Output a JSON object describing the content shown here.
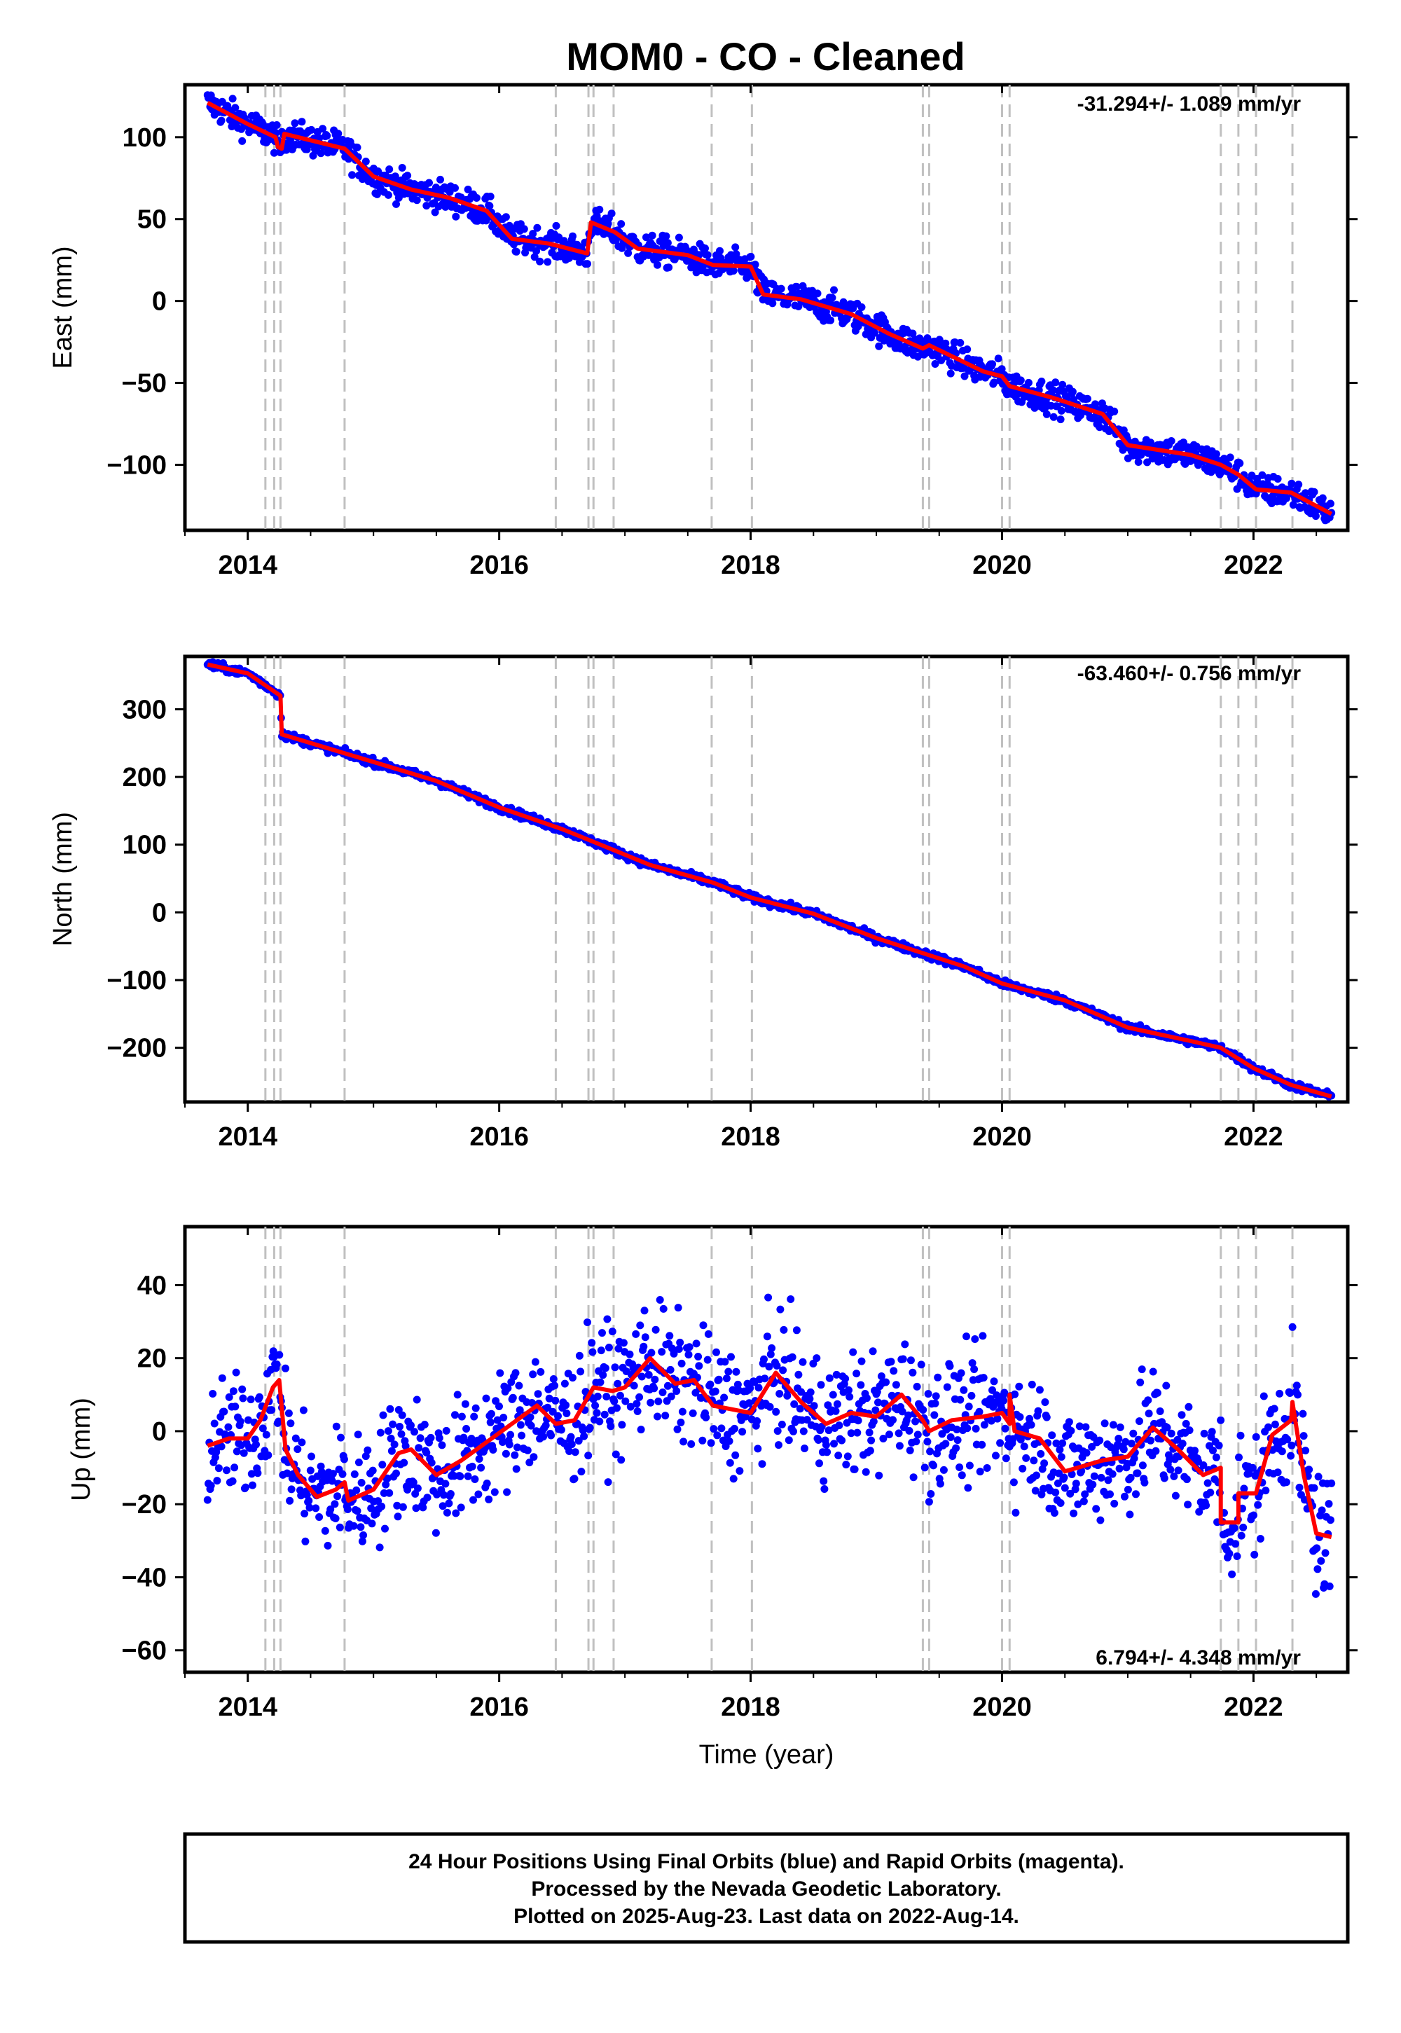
{
  "title": "MOM0  - CO - Cleaned",
  "colors": {
    "points": "#0000ff",
    "model": "#ff0000",
    "breaks": "#c0c0c0",
    "frame": "#000000"
  },
  "chart_data": [
    {
      "type": "scatter",
      "ylabel": "East (mm)",
      "xlabel": "",
      "rate": "-31.294+/- 1.089 mm/yr",
      "xlim": [
        2013.5,
        2022.75
      ],
      "ylim": [
        -140,
        132
      ],
      "xticks": [
        2014,
        2016,
        2018,
        2020,
        2022
      ],
      "yticks": [
        -100,
        -50,
        0,
        50,
        100
      ],
      "breaks": [
        2014.14,
        2014.21,
        2014.26,
        2014.77,
        2016.45,
        2016.71,
        2016.75,
        2016.91,
        2017.69,
        2018.01,
        2019.37,
        2019.42,
        2020.0,
        2020.06,
        2021.74,
        2021.88,
        2022.02,
        2022.31
      ],
      "model": [
        [
          2013.68,
          121
        ],
        [
          2014.0,
          108
        ],
        [
          2014.22,
          100
        ],
        [
          2014.24,
          94
        ],
        [
          2014.27,
          93
        ],
        [
          2014.29,
          102
        ],
        [
          2014.77,
          93
        ],
        [
          2015.0,
          76
        ],
        [
          2015.3,
          68
        ],
        [
          2015.6,
          63
        ],
        [
          2015.9,
          55
        ],
        [
          2016.1,
          38
        ],
        [
          2016.4,
          35
        ],
        [
          2016.7,
          29
        ],
        [
          2016.73,
          48
        ],
        [
          2016.92,
          42
        ],
        [
          2017.1,
          32
        ],
        [
          2017.5,
          28
        ],
        [
          2017.7,
          22
        ],
        [
          2018.0,
          21
        ],
        [
          2018.1,
          4
        ],
        [
          2018.4,
          1
        ],
        [
          2018.8,
          -8
        ],
        [
          2019.1,
          -20
        ],
        [
          2019.37,
          -29
        ],
        [
          2019.42,
          -27
        ],
        [
          2019.85,
          -43
        ],
        [
          2020.0,
          -46
        ],
        [
          2020.06,
          -52
        ],
        [
          2020.4,
          -59
        ],
        [
          2020.8,
          -69
        ],
        [
          2021.0,
          -88
        ],
        [
          2021.5,
          -94
        ],
        [
          2021.74,
          -100
        ],
        [
          2021.88,
          -106
        ],
        [
          2022.02,
          -115
        ],
        [
          2022.3,
          -117
        ],
        [
          2022.62,
          -130
        ]
      ]
    },
    {
      "type": "scatter",
      "ylabel": "North (mm)",
      "xlabel": "",
      "rate": "-63.460+/- 0.756 mm/yr",
      "xlim": [
        2013.5,
        2022.75
      ],
      "ylim": [
        -280,
        378
      ],
      "xticks": [
        2014,
        2016,
        2018,
        2020,
        2022
      ],
      "yticks": [
        -200,
        -100,
        0,
        100,
        200,
        300
      ],
      "breaks": [
        2014.14,
        2014.21,
        2014.26,
        2014.77,
        2016.45,
        2016.71,
        2016.75,
        2016.91,
        2017.69,
        2018.01,
        2019.37,
        2019.42,
        2020.0,
        2020.06,
        2021.74,
        2021.88,
        2022.02,
        2022.31
      ],
      "model": [
        [
          2013.68,
          366
        ],
        [
          2014.0,
          353
        ],
        [
          2014.26,
          320
        ],
        [
          2014.27,
          263
        ],
        [
          2014.77,
          235
        ],
        [
          2015.5,
          194
        ],
        [
          2016.0,
          155
        ],
        [
          2016.5,
          123
        ],
        [
          2016.7,
          108
        ],
        [
          2017.2,
          70
        ],
        [
          2017.7,
          44
        ],
        [
          2018.0,
          22
        ],
        [
          2018.5,
          -2
        ],
        [
          2019.0,
          -38
        ],
        [
          2019.4,
          -62
        ],
        [
          2019.7,
          -80
        ],
        [
          2020.0,
          -105
        ],
        [
          2020.5,
          -130
        ],
        [
          2021.0,
          -170
        ],
        [
          2021.5,
          -190
        ],
        [
          2021.74,
          -200
        ],
        [
          2022.0,
          -230
        ],
        [
          2022.3,
          -255
        ],
        [
          2022.62,
          -272
        ]
      ]
    },
    {
      "type": "scatter",
      "ylabel": "Up (mm)",
      "xlabel": "Time (year)",
      "rate": "6.794+/- 4.348 mm/yr",
      "xlim": [
        2013.5,
        2022.75
      ],
      "ylim": [
        -66,
        56
      ],
      "xticks": [
        2014,
        2016,
        2018,
        2020,
        2022
      ],
      "yticks": [
        -60,
        -40,
        -20,
        0,
        20,
        40
      ],
      "breaks": [
        2014.14,
        2014.21,
        2014.26,
        2014.77,
        2016.45,
        2016.71,
        2016.75,
        2016.91,
        2017.69,
        2018.01,
        2019.37,
        2019.42,
        2020.0,
        2020.06,
        2021.74,
        2021.88,
        2022.02,
        2022.31
      ],
      "model": [
        [
          2013.68,
          -4
        ],
        [
          2013.85,
          -2
        ],
        [
          2014.0,
          -2
        ],
        [
          2014.1,
          3
        ],
        [
          2014.2,
          12
        ],
        [
          2014.25,
          14
        ],
        [
          2014.3,
          -5
        ],
        [
          2014.4,
          -12
        ],
        [
          2014.55,
          -18
        ],
        [
          2014.7,
          -16
        ],
        [
          2014.77,
          -14
        ],
        [
          2014.8,
          -19
        ],
        [
          2015.0,
          -16
        ],
        [
          2015.2,
          -6
        ],
        [
          2015.3,
          -5
        ],
        [
          2015.5,
          -12
        ],
        [
          2015.7,
          -8
        ],
        [
          2015.9,
          -3
        ],
        [
          2016.1,
          2
        ],
        [
          2016.3,
          7
        ],
        [
          2016.45,
          2
        ],
        [
          2016.6,
          3
        ],
        [
          2016.75,
          12
        ],
        [
          2016.9,
          11
        ],
        [
          2017.0,
          12
        ],
        [
          2017.2,
          20
        ],
        [
          2017.4,
          13
        ],
        [
          2017.55,
          14
        ],
        [
          2017.7,
          7
        ],
        [
          2017.85,
          6
        ],
        [
          2018.0,
          5
        ],
        [
          2018.2,
          16
        ],
        [
          2018.4,
          8
        ],
        [
          2018.6,
          2
        ],
        [
          2018.8,
          5
        ],
        [
          2019.0,
          4
        ],
        [
          2019.2,
          10
        ],
        [
          2019.37,
          3
        ],
        [
          2019.42,
          0
        ],
        [
          2019.6,
          3
        ],
        [
          2019.85,
          4
        ],
        [
          2020.0,
          5
        ],
        [
          2020.06,
          2
        ],
        [
          2020.06,
          10
        ],
        [
          2020.1,
          0
        ],
        [
          2020.3,
          -2
        ],
        [
          2020.5,
          -11
        ],
        [
          2020.8,
          -8
        ],
        [
          2021.0,
          -7
        ],
        [
          2021.2,
          1
        ],
        [
          2021.4,
          -5
        ],
        [
          2021.6,
          -12
        ],
        [
          2021.74,
          -10
        ],
        [
          2021.74,
          -25
        ],
        [
          2021.88,
          -25
        ],
        [
          2021.88,
          -17
        ],
        [
          2022.02,
          -17
        ],
        [
          2022.15,
          -1
        ],
        [
          2022.3,
          3
        ],
        [
          2022.31,
          8
        ],
        [
          2022.4,
          -12
        ],
        [
          2022.5,
          -28
        ],
        [
          2022.62,
          -29
        ]
      ]
    }
  ],
  "footer": {
    "line1": "24 Hour Positions Using Final Orbits (blue) and Rapid Orbits (magenta).",
    "line2": "Processed by the Nevada Geodetic Laboratory.",
    "line3": "Plotted on 2025-Aug-23. Last data on 2022-Aug-14."
  }
}
